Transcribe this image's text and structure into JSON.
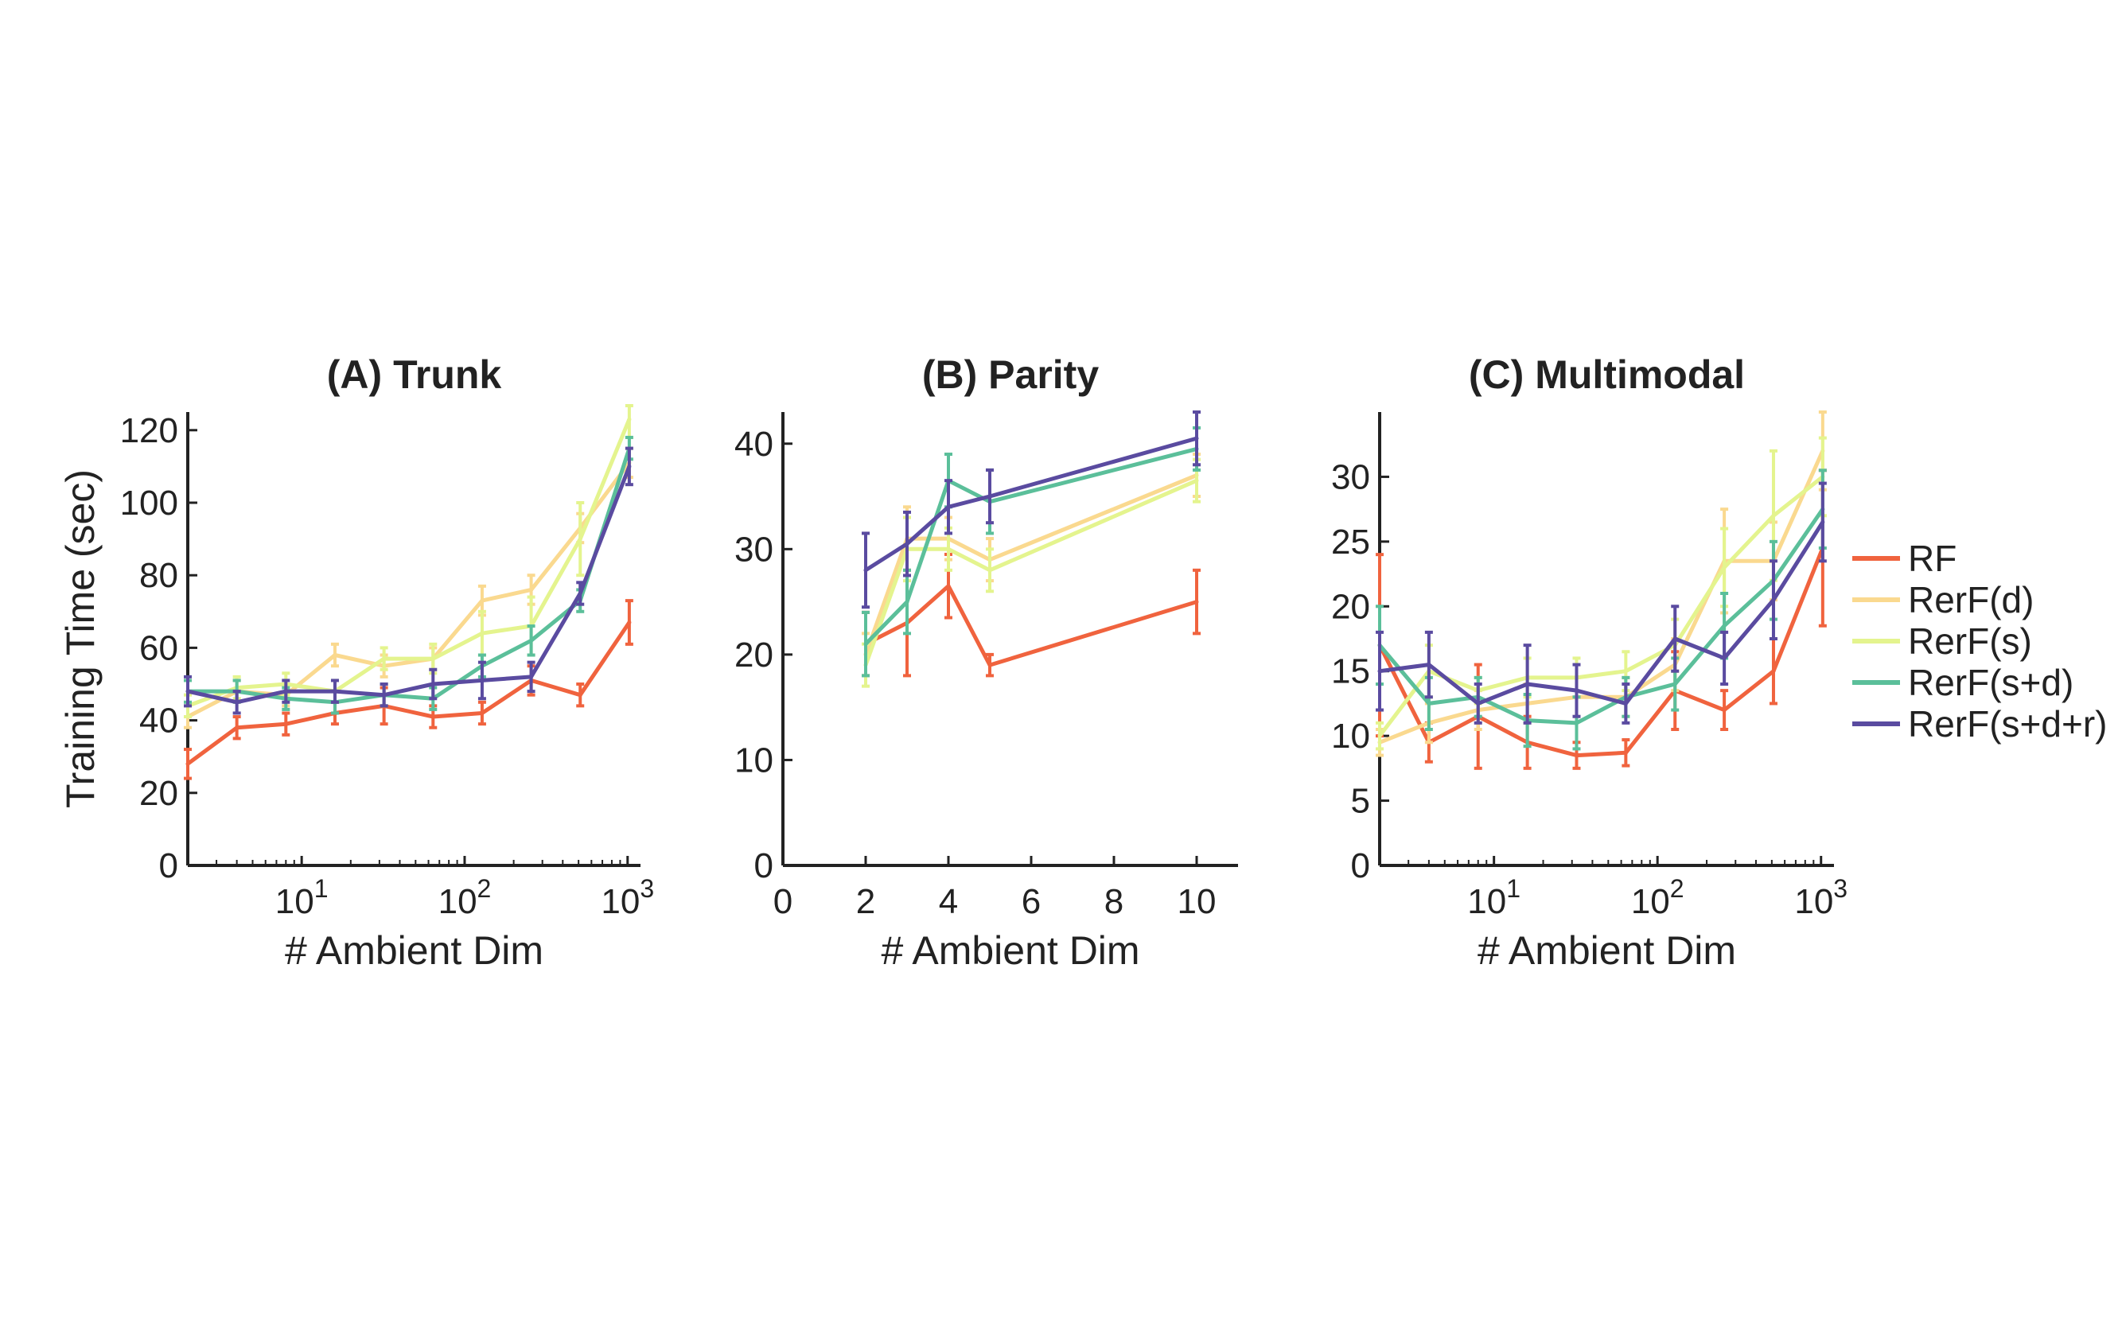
{
  "legend": [
    {
      "name": "RF",
      "color": "#f0633e"
    },
    {
      "name": "RerF(d)",
      "color": "#fad98f"
    },
    {
      "name": "RerF(s)",
      "color": "#e4f48e"
    },
    {
      "name": "RerF(s+d)",
      "color": "#5bbf9a"
    },
    {
      "name": "RerF(s+d+r)",
      "color": "#5a4ba0"
    }
  ],
  "chart_data": [
    {
      "type": "line",
      "title": "(A) Trunk",
      "xlabel": "# Ambient Dim",
      "ylabel": "Training Time (sec)",
      "xscale": "log",
      "xlim": [
        2,
        1200
      ],
      "ylim": [
        0,
        125
      ],
      "xticks": [
        10,
        100,
        1000
      ],
      "xtick_labels": [
        {
          "base": "10",
          "exp": "1"
        },
        {
          "base": "10",
          "exp": "2"
        },
        {
          "base": "10",
          "exp": "3"
        }
      ],
      "yticks": [
        0,
        20,
        40,
        60,
        80,
        100,
        120
      ],
      "ytick_labels": [
        "0",
        "20",
        "40",
        "60",
        "80",
        "100",
        "120"
      ],
      "x": [
        2,
        4,
        8,
        16,
        32,
        64,
        128,
        256,
        512,
        1024
      ],
      "series": [
        {
          "name": "RF",
          "color": "#f0633e",
          "values": [
            28,
            38,
            39,
            42,
            44,
            41,
            42,
            51,
            47,
            67
          ],
          "errors": [
            4,
            3,
            3,
            3,
            5,
            3,
            3,
            4,
            3,
            6
          ]
        },
        {
          "name": "RerF(d)",
          "color": "#fad98f",
          "values": [
            41,
            48,
            47,
            58,
            55,
            57,
            73,
            76,
            93,
            111
          ],
          "errors": [
            3,
            3,
            3,
            3,
            3,
            3,
            4,
            4,
            4,
            4
          ]
        },
        {
          "name": "RerF(s)",
          "color": "#e4f48e",
          "values": [
            44,
            49,
            50,
            48,
            57,
            57,
            64,
            66,
            90,
            123
          ],
          "errors": [
            3,
            3,
            3,
            3,
            3,
            4,
            6,
            8,
            10,
            5
          ]
        },
        {
          "name": "RerF(s+d)",
          "color": "#5bbf9a",
          "values": [
            48,
            48,
            46,
            45,
            47,
            46,
            55,
            62,
            73,
            115
          ],
          "errors": [
            3,
            3,
            3,
            3,
            3,
            3,
            3,
            4,
            3,
            3
          ]
        },
        {
          "name": "RerF(s+d+r)",
          "color": "#5a4ba0",
          "values": [
            48,
            45,
            48,
            48,
            47,
            50,
            51,
            52,
            75,
            110
          ],
          "errors": [
            4,
            3,
            3,
            3,
            3,
            4,
            5,
            4,
            3,
            5
          ]
        }
      ]
    },
    {
      "type": "line",
      "title": "(B) Parity",
      "xlabel": "# Ambient Dim",
      "ylabel": "",
      "xscale": "linear",
      "xlim": [
        0,
        11
      ],
      "ylim": [
        0,
        43
      ],
      "xticks": [
        0,
        2,
        4,
        6,
        8,
        10
      ],
      "xtick_labels": [
        "0",
        "2",
        "4",
        "6",
        "8",
        "10"
      ],
      "yticks": [
        0,
        10,
        20,
        30,
        40
      ],
      "ytick_labels": [
        "0",
        "10",
        "20",
        "30",
        "40"
      ],
      "x": [
        2,
        3,
        4,
        5,
        10
      ],
      "series": [
        {
          "name": "RF",
          "color": "#f0633e",
          "values": [
            21,
            23,
            26.5,
            19,
            25
          ],
          "errors": [
            3,
            5,
            3,
            1,
            3
          ]
        },
        {
          "name": "RerF(d)",
          "color": "#fad98f",
          "values": [
            20,
            31,
            31,
            29,
            37
          ],
          "errors": [
            2,
            3,
            2,
            2,
            2
          ]
        },
        {
          "name": "RerF(s)",
          "color": "#e4f48e",
          "values": [
            19,
            30,
            30,
            28,
            36.5
          ],
          "errors": [
            2,
            3,
            2,
            2,
            2
          ]
        },
        {
          "name": "RerF(s+d)",
          "color": "#5bbf9a",
          "values": [
            21,
            25,
            36.5,
            34.5,
            39.5
          ],
          "errors": [
            3,
            3,
            2.5,
            3,
            2
          ]
        },
        {
          "name": "RerF(s+d+r)",
          "color": "#5a4ba0",
          "values": [
            28,
            30.5,
            34,
            35,
            40.5
          ],
          "errors": [
            3.5,
            3,
            2.5,
            2.5,
            2.5
          ]
        }
      ]
    },
    {
      "type": "line",
      "title": "(C) Multimodal",
      "xlabel": "# Ambient Dim",
      "ylabel": "",
      "xscale": "log",
      "xlim": [
        2,
        1200
      ],
      "ylim": [
        0,
        35
      ],
      "xticks": [
        10,
        100,
        1000
      ],
      "xtick_labels": [
        {
          "base": "10",
          "exp": "1"
        },
        {
          "base": "10",
          "exp": "2"
        },
        {
          "base": "10",
          "exp": "3"
        }
      ],
      "yticks": [
        0,
        5,
        10,
        15,
        20,
        25,
        30
      ],
      "ytick_labels": [
        "0",
        "5",
        "10",
        "15",
        "20",
        "25",
        "30"
      ],
      "x": [
        2,
        4,
        8,
        16,
        32,
        64,
        128,
        256,
        512,
        1024
      ],
      "series": [
        {
          "name": "RF",
          "color": "#f0633e",
          "values": [
            17,
            9.5,
            11.5,
            9.5,
            8.5,
            8.7,
            13.5,
            12,
            15,
            24.5
          ],
          "errors": [
            7,
            1.5,
            4,
            2,
            1,
            1,
            3,
            1.5,
            2.5,
            6
          ]
        },
        {
          "name": "RerF(d)",
          "color": "#fad98f",
          "values": [
            9.5,
            11,
            12,
            12.5,
            13,
            13,
            15.5,
            23.5,
            23.5,
            32
          ],
          "errors": [
            1,
            1.5,
            1.5,
            1.5,
            1.5,
            1.5,
            2,
            4,
            3,
            3
          ]
        },
        {
          "name": "RerF(s)",
          "color": "#e4f48e",
          "values": [
            10,
            15,
            13.5,
            14.5,
            14.5,
            15,
            17,
            23,
            27,
            30
          ],
          "errors": [
            1,
            2,
            1,
            1.5,
            1.5,
            1.5,
            2,
            3,
            5,
            3
          ]
        },
        {
          "name": "RerF(s+d)",
          "color": "#5bbf9a",
          "values": [
            17,
            12.5,
            13,
            11.2,
            11,
            13,
            14,
            18.5,
            22,
            27.5
          ],
          "errors": [
            3,
            2,
            1.5,
            2,
            2,
            1.5,
            2,
            2.5,
            3,
            3
          ]
        },
        {
          "name": "RerF(s+d+r)",
          "color": "#5a4ba0",
          "values": [
            15,
            15.5,
            12.5,
            14,
            13.5,
            12.5,
            17.5,
            16,
            20.5,
            26.5
          ],
          "errors": [
            3,
            2.5,
            1.5,
            3,
            2,
            1.5,
            2.5,
            2,
            3,
            3
          ]
        }
      ]
    }
  ]
}
